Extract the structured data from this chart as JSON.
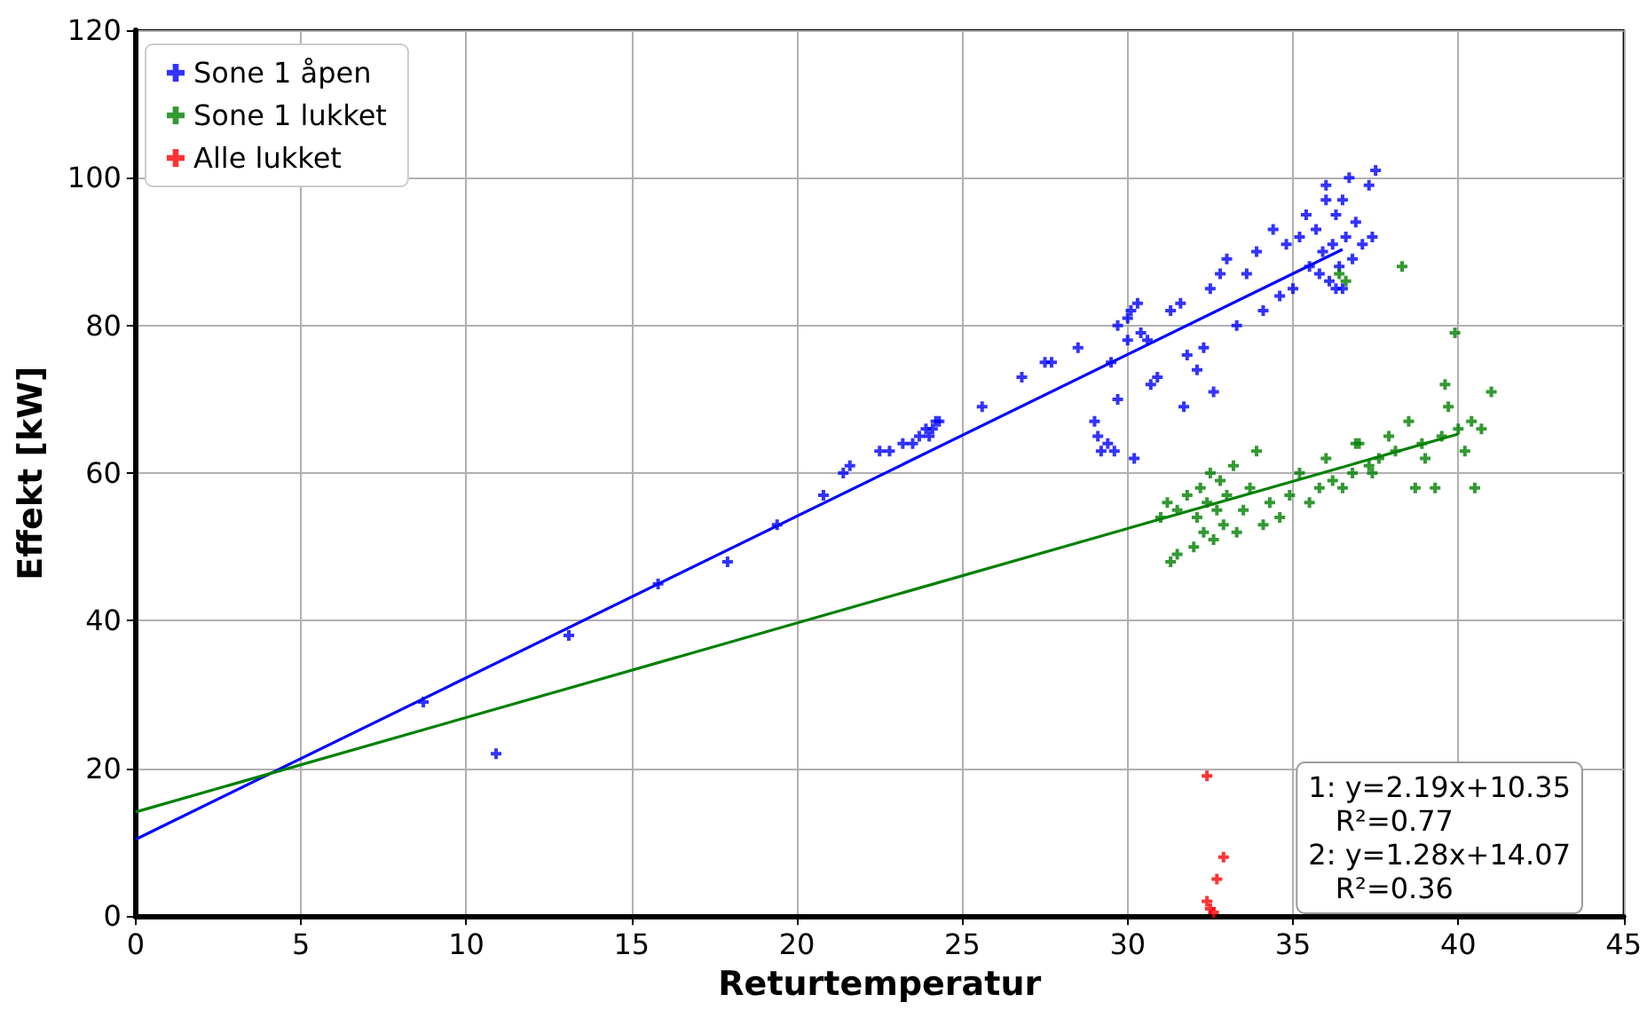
{
  "chart_data": {
    "type": "scatter",
    "xlabel": "Returtemperatur",
    "ylabel": "Effekt [kW]",
    "xlim": [
      0,
      45
    ],
    "xticks": [
      0,
      5,
      10,
      15,
      20,
      25,
      30,
      35,
      40,
      45
    ],
    "ylim": [
      0,
      120
    ],
    "yticks": [
      0,
      20,
      40,
      60,
      80,
      100,
      120
    ],
    "grid": true,
    "legend": "top left",
    "marker": "cross",
    "annotations": [
      "1: y=2.19x+10.35\n   R²=0.77\n2: y=1.28x+14.07\n   R²=0.36"
    ],
    "series": [
      {
        "name": "Sone 1 åpen",
        "color": "#0000ff",
        "x": [
          8.7,
          10.9,
          13.1,
          15.8,
          17.9,
          19.4,
          20.8,
          21.4,
          21.6,
          22.5,
          22.8,
          23.2,
          23.5,
          23.7,
          23.9,
          24.1,
          24.2,
          24.3,
          24.0,
          25.6,
          26.8,
          27.5,
          27.7,
          28.5,
          29.0,
          29.1,
          29.2,
          29.4,
          29.6,
          29.7,
          29.5,
          29.7,
          30.0,
          30.0,
          30.1,
          30.3,
          30.4,
          30.6,
          30.2,
          30.7,
          30.9,
          31.3,
          31.6,
          31.8,
          31.7,
          32.1,
          32.3,
          32.5,
          32.8,
          32.6,
          33.0,
          33.3,
          33.6,
          33.9,
          34.1,
          34.4,
          34.6,
          34.8,
          35.0,
          35.2,
          35.4,
          35.5,
          35.7,
          35.8,
          35.9,
          36.0,
          36.1,
          36.2,
          36.3,
          36.4,
          36.5,
          36.6,
          36.7,
          36.8,
          36.9,
          37.1,
          37.3,
          37.5,
          37.4,
          36.3,
          36.0,
          36.5
        ],
        "values": [
          29,
          22,
          38,
          45,
          48,
          53,
          57,
          60,
          61,
          63,
          63,
          64,
          64,
          65,
          66,
          66,
          67,
          67,
          65,
          69,
          73,
          75,
          75,
          77,
          67,
          65,
          63,
          64,
          63,
          70,
          75,
          80,
          78,
          81,
          82,
          83,
          79,
          78,
          62,
          72,
          73,
          82,
          83,
          76,
          69,
          74,
          77,
          85,
          87,
          71,
          89,
          80,
          87,
          90,
          82,
          93,
          84,
          91,
          85,
          92,
          95,
          88,
          93,
          87,
          90,
          99,
          86,
          91,
          95,
          88,
          97,
          92,
          100,
          89,
          94,
          91,
          99,
          101,
          92,
          85,
          97,
          85
        ]
      },
      {
        "name": "Sone 1 lukket",
        "color": "#008000",
        "x": [
          31.3,
          31.5,
          31.0,
          31.2,
          31.5,
          31.8,
          32.0,
          32.1,
          32.2,
          32.3,
          32.4,
          32.5,
          32.6,
          32.7,
          32.8,
          32.9,
          33.0,
          33.2,
          33.3,
          33.5,
          33.7,
          33.9,
          34.1,
          34.3,
          34.6,
          34.9,
          35.2,
          35.5,
          35.8,
          36.0,
          36.2,
          36.5,
          36.8,
          37.0,
          37.3,
          37.6,
          37.9,
          38.1,
          38.3,
          38.5,
          38.7,
          39.0,
          39.3,
          39.5,
          39.6,
          39.7,
          39.9,
          40.0,
          40.2,
          40.4,
          40.5,
          40.7,
          41.0,
          36.4,
          36.6,
          37.4,
          38.9,
          36.9
        ],
        "values": [
          48,
          49,
          54,
          56,
          55,
          57,
          50,
          54,
          58,
          52,
          56,
          60,
          51,
          55,
          59,
          53,
          57,
          61,
          52,
          55,
          58,
          63,
          53,
          56,
          54,
          57,
          60,
          56,
          58,
          62,
          59,
          58,
          60,
          64,
          61,
          62,
          65,
          63,
          88,
          67,
          58,
          62,
          58,
          65,
          72,
          69,
          79,
          66,
          63,
          67,
          58,
          66,
          71,
          87,
          86,
          60,
          64,
          64
        ]
      },
      {
        "name": "Alle lukket",
        "color": "#ff0000",
        "x": [
          32.4,
          32.9,
          32.7,
          32.4,
          32.5,
          32.6
        ],
        "values": [
          19,
          8,
          5,
          2,
          1,
          0.5
        ]
      },
      {
        "type": "line",
        "marker": "none",
        "color": "#0000ff",
        "x": [
          0,
          36.5
        ],
        "values": [
          10.4,
          90.3
        ]
      },
      {
        "type": "line",
        "marker": "none",
        "color": "#008000",
        "x": [
          0,
          40
        ],
        "values": [
          14.1,
          65.3
        ]
      }
    ]
  }
}
